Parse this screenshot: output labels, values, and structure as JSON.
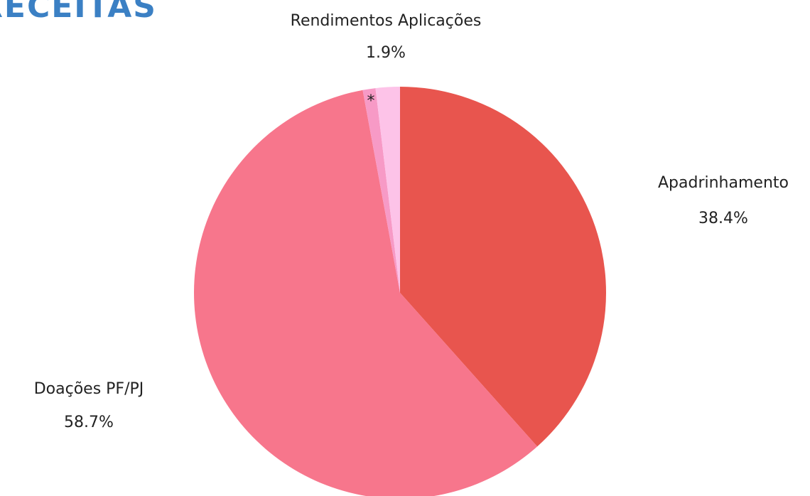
{
  "chart_data": {
    "type": "pie",
    "title": "RECEITAS",
    "categories": [
      "Apadrinhamento",
      "Doações PF/PJ",
      "*",
      "Rendimentos Aplicações"
    ],
    "values": [
      38.4,
      58.7,
      1.0,
      1.9
    ],
    "value_labels": [
      "38.4%",
      "58.7%",
      null,
      "1.9%"
    ],
    "colors": [
      "#e8554e",
      "#f7768c",
      "#f79ac6",
      "#fdc3e8"
    ]
  }
}
